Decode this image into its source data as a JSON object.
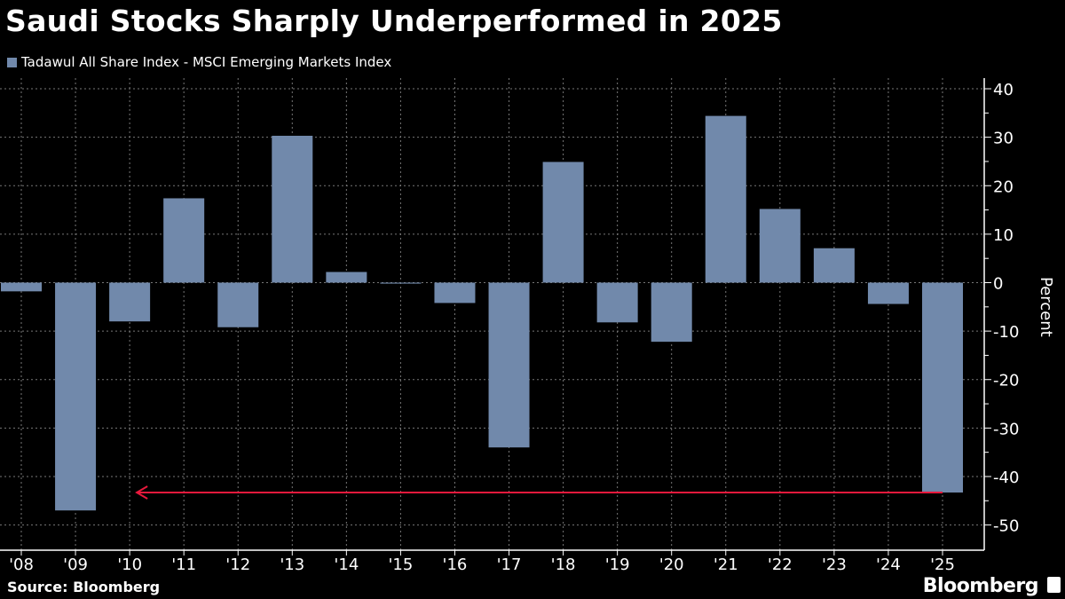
{
  "title": "Saudi Stocks Sharply Underperformed in 2025",
  "source": "Source: Bloomberg",
  "brand": "Bloomberg",
  "chart_data": {
    "type": "bar",
    "title": "Saudi Stocks Sharply Underperformed in 2025",
    "legend": "Tadawul All Share Index - MSCI Emerging Markets Index",
    "legend_position": "top-left",
    "categories": [
      "'08",
      "'09",
      "'10",
      "'11",
      "'12",
      "'13",
      "'14",
      "'15",
      "'16",
      "'17",
      "'18",
      "'19",
      "'20",
      "'21",
      "'22",
      "'23",
      "'24",
      "'25"
    ],
    "values": [
      -1.8,
      -47.0,
      -8.0,
      17.4,
      -9.2,
      30.3,
      2.2,
      -0.2,
      -4.2,
      -34.0,
      24.9,
      -8.2,
      -12.2,
      34.4,
      15.2,
      7.1,
      -4.4,
      -43.3
    ],
    "ylabel": "Percent",
    "ylim": [
      -55.2,
      42.2
    ],
    "yticks": [
      40,
      30,
      20,
      10,
      0,
      -10,
      -20,
      -30,
      -40,
      -50
    ],
    "y_axis_position": "right",
    "grid": true,
    "bar_color": "#7189ab",
    "annotation": {
      "type": "arrow",
      "color": "#e8193c",
      "from_category": "'25",
      "to_category": "'10",
      "y": -43.3
    }
  }
}
